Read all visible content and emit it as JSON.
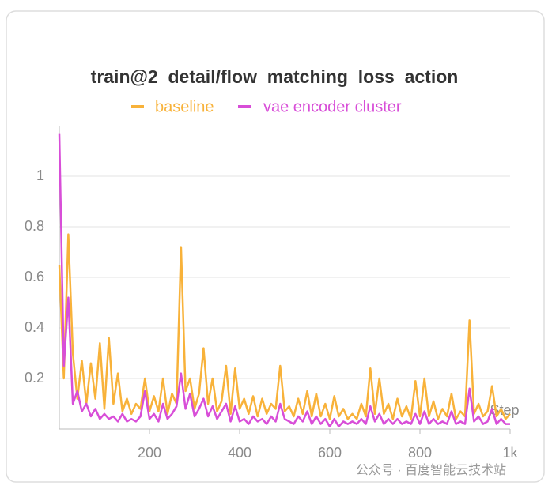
{
  "chart_data": {
    "type": "line",
    "title": "train@2_detail/flow_matching_loss_action",
    "x_label": "Step",
    "watermark": "公众号 · 百度智能云技术站",
    "x": [
      0,
      10,
      20,
      30,
      40,
      50,
      60,
      70,
      80,
      90,
      100,
      110,
      120,
      130,
      140,
      150,
      160,
      170,
      180,
      190,
      200,
      210,
      220,
      230,
      240,
      250,
      260,
      270,
      280,
      290,
      300,
      310,
      320,
      330,
      340,
      350,
      360,
      370,
      380,
      390,
      400,
      410,
      420,
      430,
      440,
      450,
      460,
      470,
      480,
      490,
      500,
      510,
      520,
      530,
      540,
      550,
      560,
      570,
      580,
      590,
      600,
      610,
      620,
      630,
      640,
      650,
      660,
      670,
      680,
      690,
      700,
      710,
      720,
      730,
      740,
      750,
      760,
      770,
      780,
      790,
      800,
      810,
      820,
      830,
      840,
      850,
      860,
      870,
      880,
      890,
      900,
      910,
      920,
      930,
      940,
      950,
      960,
      970,
      980,
      990,
      1000
    ],
    "series": [
      {
        "name": "baseline",
        "color": "#f8b23a",
        "values": [
          0.65,
          0.2,
          0.77,
          0.3,
          0.12,
          0.27,
          0.1,
          0.26,
          0.12,
          0.34,
          0.08,
          0.36,
          0.1,
          0.22,
          0.07,
          0.12,
          0.06,
          0.1,
          0.08,
          0.2,
          0.07,
          0.13,
          0.07,
          0.2,
          0.06,
          0.14,
          0.1,
          0.72,
          0.15,
          0.2,
          0.08,
          0.14,
          0.32,
          0.1,
          0.2,
          0.07,
          0.11,
          0.25,
          0.06,
          0.24,
          0.08,
          0.12,
          0.06,
          0.13,
          0.05,
          0.12,
          0.06,
          0.1,
          0.08,
          0.25,
          0.07,
          0.09,
          0.05,
          0.12,
          0.06,
          0.15,
          0.05,
          0.14,
          0.05,
          0.1,
          0.04,
          0.13,
          0.05,
          0.08,
          0.04,
          0.06,
          0.04,
          0.1,
          0.05,
          0.24,
          0.06,
          0.2,
          0.06,
          0.1,
          0.04,
          0.12,
          0.05,
          0.09,
          0.04,
          0.19,
          0.05,
          0.2,
          0.05,
          0.11,
          0.04,
          0.08,
          0.05,
          0.14,
          0.04,
          0.07,
          0.05,
          0.43,
          0.06,
          0.1,
          0.05,
          0.07,
          0.17,
          0.05,
          0.08,
          0.04,
          0.06
        ]
      },
      {
        "name": "vae encoder cluster",
        "color": "#d84ed8",
        "values": [
          1.17,
          0.25,
          0.52,
          0.1,
          0.15,
          0.07,
          0.1,
          0.05,
          0.08,
          0.04,
          0.06,
          0.04,
          0.05,
          0.03,
          0.06,
          0.03,
          0.04,
          0.03,
          0.05,
          0.15,
          0.04,
          0.06,
          0.03,
          0.1,
          0.04,
          0.06,
          0.09,
          0.22,
          0.08,
          0.14,
          0.05,
          0.08,
          0.12,
          0.05,
          0.09,
          0.04,
          0.07,
          0.1,
          0.03,
          0.09,
          0.03,
          0.04,
          0.02,
          0.05,
          0.03,
          0.04,
          0.02,
          0.05,
          0.03,
          0.1,
          0.04,
          0.03,
          0.02,
          0.05,
          0.03,
          0.07,
          0.02,
          0.05,
          0.02,
          0.04,
          0.01,
          0.04,
          0.01,
          0.03,
          0.02,
          0.03,
          0.02,
          0.04,
          0.02,
          0.09,
          0.03,
          0.06,
          0.02,
          0.04,
          0.02,
          0.04,
          0.02,
          0.03,
          0.02,
          0.06,
          0.02,
          0.07,
          0.02,
          0.04,
          0.02,
          0.03,
          0.02,
          0.07,
          0.02,
          0.03,
          0.02,
          0.16,
          0.03,
          0.05,
          0.02,
          0.03,
          0.08,
          0.02,
          0.04,
          0.02,
          0.02
        ]
      }
    ],
    "xlim": [
      0,
      1000
    ],
    "ylim": [
      0,
      1.2
    ],
    "xticks": [
      200,
      400,
      600,
      800,
      {
        "value": 1000,
        "label": "1k"
      }
    ],
    "yticks": [
      0.2,
      0.4,
      0.6,
      0.8,
      1
    ],
    "grid": true
  }
}
